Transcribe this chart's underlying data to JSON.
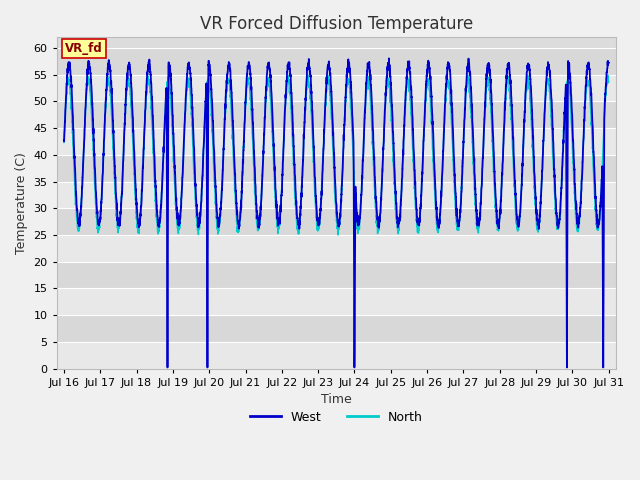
{
  "title": "VR Forced Diffusion Temperature",
  "xlabel": "Time",
  "ylabel": "Temperature (C)",
  "ylim": [
    0,
    62
  ],
  "yticks": [
    0,
    5,
    10,
    15,
    20,
    25,
    30,
    35,
    40,
    45,
    50,
    55,
    60
  ],
  "west_color": "#0000CC",
  "north_color": "#00CCCC",
  "fig_bg": "#F0F0F0",
  "plot_bg": "#DCDCDC",
  "band_colors": [
    "#E8E8E8",
    "#D8D8D8"
  ],
  "label_box_text": "VR_fd",
  "label_box_bg": "#FFFF99",
  "label_box_border": "#CC0000",
  "label_box_text_color": "#880000",
  "xtick_labels": [
    "Jul 16",
    "Jul 17",
    "Jul 18",
    "Jul 19",
    "Jul 20",
    "Jul 21",
    "Jul 22",
    "Jul 23",
    "Jul 24",
    "Jul 25",
    "Jul 26",
    "Jul 27",
    "Jul 28",
    "Jul 29",
    "Jul 30",
    "Jul 31"
  ],
  "legend_west": "West",
  "legend_north": "North",
  "title_fontsize": 12,
  "axis_label_fontsize": 9,
  "tick_fontsize": 8,
  "west_drop_days": [
    2.85,
    3.95,
    8.0,
    13.85,
    14.85
  ],
  "n_days": 15,
  "samples_per_day": 240,
  "west_base_amp": 15,
  "west_base_mid": 42,
  "west_period": 0.55,
  "north_base_amp": 14,
  "north_base_mid": 40,
  "north_period": 0.55
}
